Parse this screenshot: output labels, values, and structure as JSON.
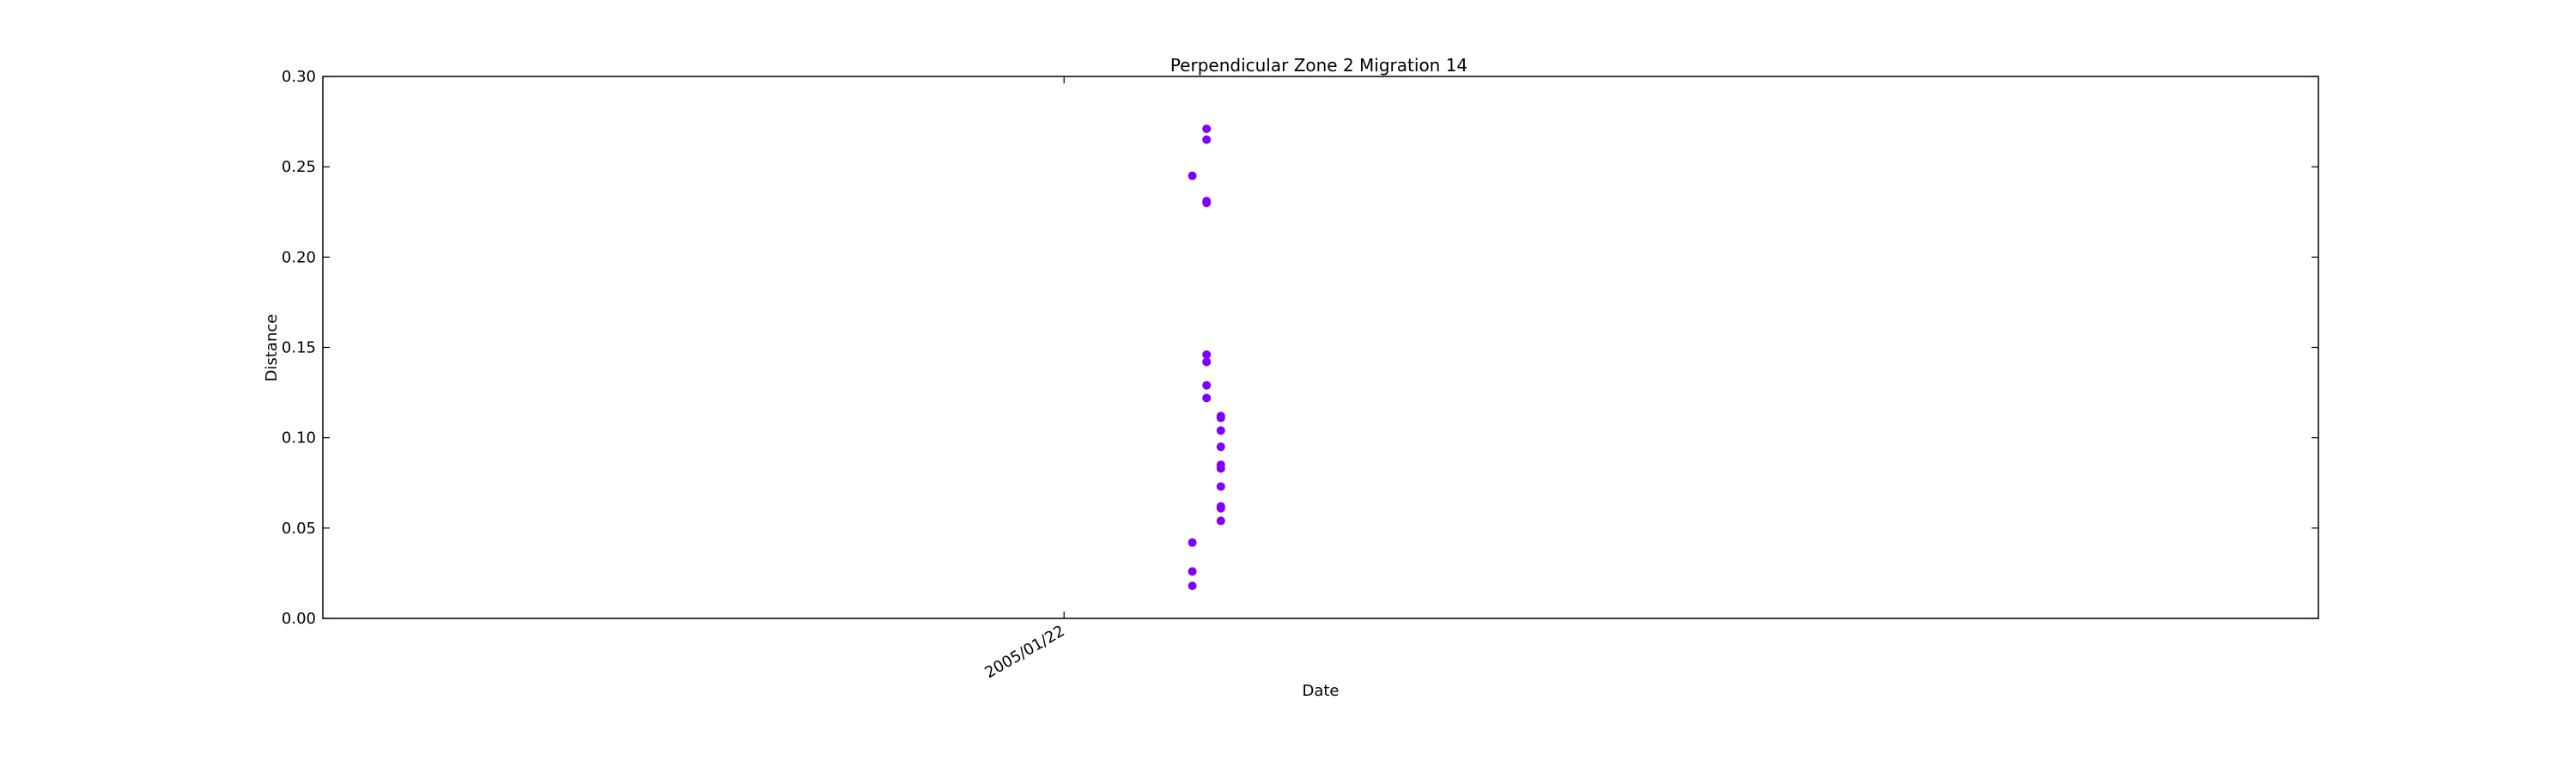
{
  "colors": {
    "marker": "#7f00ff",
    "axes": "#000000",
    "background": "#ffffff"
  },
  "chart_data": {
    "type": "scatter",
    "title": "Perpendicular Zone 2 Migration 14",
    "xlabel": "Date",
    "ylabel": "Distance",
    "ylim": [
      0.0,
      0.3
    ],
    "xlim": [
      "2004-12-01",
      "2005-04-20"
    ],
    "y_ticks": [
      "0.00",
      "0.05",
      "0.10",
      "0.15",
      "0.20",
      "0.25",
      "0.30"
    ],
    "x_ticks": [
      {
        "label": "2005/01/22",
        "date": "2005-01-22"
      }
    ],
    "grid": false,
    "legend": "none",
    "series": [
      {
        "points": [
          {
            "x": "2005-02-01",
            "y": 0.271
          },
          {
            "x": "2005-02-01",
            "y": 0.265
          },
          {
            "x": "2005-01-31",
            "y": 0.245
          },
          {
            "x": "2005-02-01",
            "y": 0.231
          },
          {
            "x": "2005-02-01",
            "y": 0.23
          },
          {
            "x": "2005-02-01",
            "y": 0.146
          },
          {
            "x": "2005-02-01",
            "y": 0.142
          },
          {
            "x": "2005-02-01",
            "y": 0.129
          },
          {
            "x": "2005-02-01",
            "y": 0.122
          },
          {
            "x": "2005-02-02",
            "y": 0.112
          },
          {
            "x": "2005-02-02",
            "y": 0.111
          },
          {
            "x": "2005-02-02",
            "y": 0.104
          },
          {
            "x": "2005-02-02",
            "y": 0.095
          },
          {
            "x": "2005-02-02",
            "y": 0.085
          },
          {
            "x": "2005-02-02",
            "y": 0.083
          },
          {
            "x": "2005-02-02",
            "y": 0.073
          },
          {
            "x": "2005-02-02",
            "y": 0.062
          },
          {
            "x": "2005-02-02",
            "y": 0.061
          },
          {
            "x": "2005-02-02",
            "y": 0.054
          },
          {
            "x": "2005-01-31",
            "y": 0.042
          },
          {
            "x": "2005-01-31",
            "y": 0.026
          },
          {
            "x": "2005-01-31",
            "y": 0.018
          }
        ]
      }
    ]
  }
}
